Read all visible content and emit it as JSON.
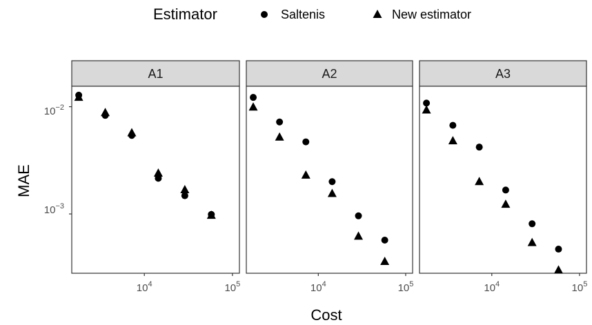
{
  "chart_data": {
    "type": "scatter",
    "xlabel": "Cost",
    "ylabel": "MAE",
    "x_scale": "log",
    "y_scale": "log",
    "xlim": [
      1500,
      120000
    ],
    "ylim": [
      0.00028,
      0.0155
    ],
    "x_ticks": [
      10000,
      100000
    ],
    "x_tick_labels": [
      {
        "base": "10",
        "exp": "4"
      },
      {
        "base": "10",
        "exp": "5"
      }
    ],
    "y_ticks": [
      0.01,
      0.001
    ],
    "y_tick_labels": [
      {
        "base": "10",
        "exp": "−2"
      },
      {
        "base": "10",
        "exp": "−3"
      }
    ],
    "legend": {
      "title": "Estimator",
      "position": "top",
      "entries": [
        {
          "name": "Saltenis",
          "shape": "circle"
        },
        {
          "name": "New estimator",
          "shape": "triangle"
        }
      ]
    },
    "facets": [
      {
        "label": "A1",
        "series": [
          {
            "name": "Saltenis",
            "shape": "circle",
            "x": [
              1800,
              3600,
              7200,
              14400,
              28800,
              57600
            ],
            "y": [
              0.0128,
              0.0083,
              0.0054,
              0.00215,
              0.00148,
              0.00099
            ]
          },
          {
            "name": "New estimator",
            "shape": "triangle",
            "x": [
              1800,
              3600,
              7200,
              14400,
              28800,
              57600
            ],
            "y": [
              0.0122,
              0.0088,
              0.0057,
              0.0024,
              0.00168,
              0.00097
            ]
          }
        ]
      },
      {
        "label": "A2",
        "series": [
          {
            "name": "Saltenis",
            "shape": "circle",
            "x": [
              1800,
              3600,
              7200,
              14400,
              28800,
              57600
            ],
            "y": [
              0.0122,
              0.0072,
              0.0047,
              0.002,
              0.00096,
              0.00057
            ]
          },
          {
            "name": "New estimator",
            "shape": "triangle",
            "x": [
              1800,
              3600,
              7200,
              14400,
              28800,
              57600
            ],
            "y": [
              0.0099,
              0.0052,
              0.0023,
              0.00155,
              0.00062,
              0.00036
            ]
          }
        ]
      },
      {
        "label": "A3",
        "series": [
          {
            "name": "Saltenis",
            "shape": "circle",
            "x": [
              1800,
              3600,
              7200,
              14400,
              28800,
              57600
            ],
            "y": [
              0.0108,
              0.0067,
              0.0042,
              0.00167,
              0.00081,
              0.00047
            ]
          },
          {
            "name": "New estimator",
            "shape": "triangle",
            "x": [
              1800,
              3600,
              7200,
              14400,
              28800,
              57600
            ],
            "y": [
              0.0093,
              0.0048,
              0.002,
              0.00123,
              0.00054,
              0.0003
            ]
          }
        ]
      }
    ],
    "grid": false
  }
}
